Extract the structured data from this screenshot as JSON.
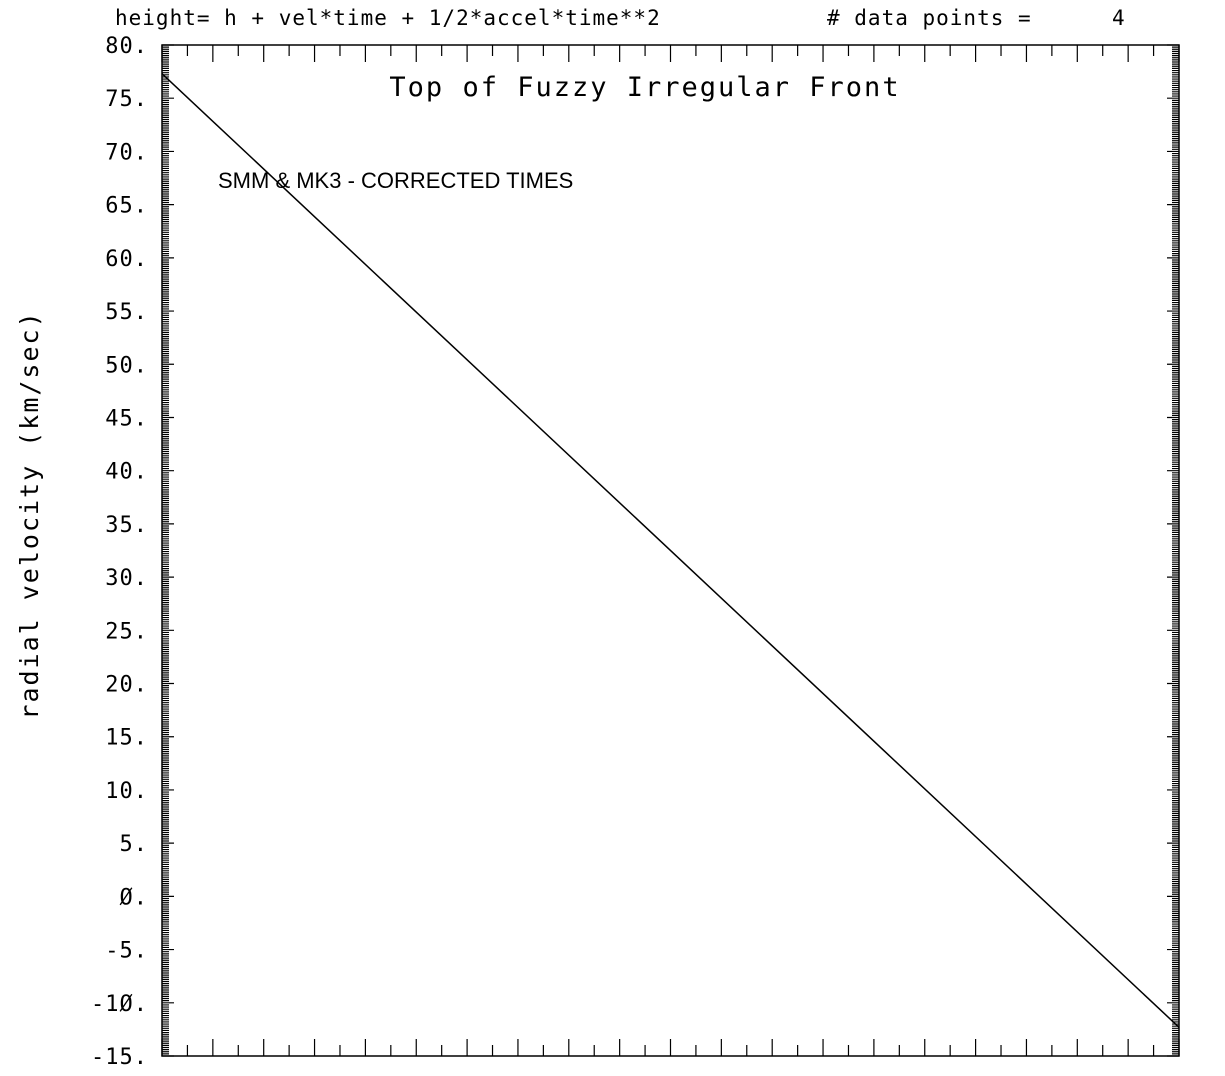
{
  "header": {
    "equation": "height= h + vel*time + 1/2*accel*time**2",
    "points_label": "# data points =",
    "points_value": "4"
  },
  "chart_data": {
    "type": "line",
    "title": "Top of Fuzzy Irregular Front",
    "annotation": "SMM & MK3 - CORRECTED TIMES",
    "xlabel": "",
    "ylabel": "radial velocity (km/sec)",
    "ylim": [
      -15,
      80
    ],
    "y_tick_labels": [
      "80.",
      "75.",
      "70.",
      "65.",
      "60.",
      "55.",
      "50.",
      "45.",
      "40.",
      "35.",
      "30.",
      "25.",
      "20.",
      "15.",
      "10.",
      "5.",
      "Ø.",
      "-5.",
      "-1Ø.",
      "-15."
    ],
    "y_tick_values": [
      80,
      75,
      70,
      65,
      60,
      55,
      50,
      45,
      40,
      35,
      30,
      25,
      20,
      15,
      10,
      5,
      0,
      -5,
      -10,
      -15
    ],
    "x_major_ticks": 20,
    "x_minor_per_major": 2,
    "y_minor_per_major": 25,
    "grid": false,
    "legend": "none",
    "series": [
      {
        "values_x_frac": [
          0,
          1
        ],
        "values": [
          77.3,
          -12.3
        ]
      }
    ]
  }
}
